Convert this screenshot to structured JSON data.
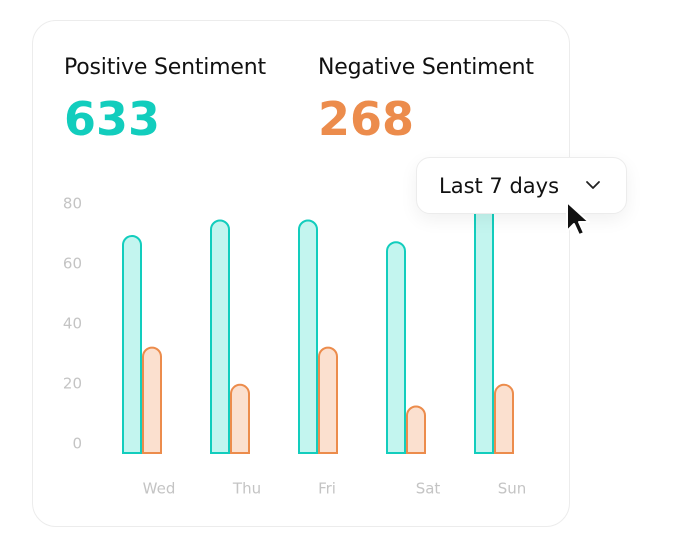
{
  "stats": {
    "positive": {
      "label": "Positive Sentiment",
      "value": "633",
      "color": "#12cdbd"
    },
    "negative": {
      "label": "Negative Sentiment",
      "value": "268",
      "color": "#ec8c4c"
    }
  },
  "dropdown": {
    "value": "Last 7 days",
    "icon": "chevron-down-icon"
  },
  "cursor": {
    "icon": "mouse-pointer-icon"
  },
  "chart_data": {
    "type": "bar",
    "categories": [
      "Wed",
      "Thu",
      "Fri",
      "Sat",
      "Sun"
    ],
    "series": [
      {
        "values": [
          70,
          75,
          75,
          68,
          80
        ],
        "fill": "#c3f5ef",
        "stroke": "#12cdbd"
      },
      {
        "values": [
          34,
          22,
          34,
          15,
          22
        ],
        "fill": "#fbe0cf",
        "stroke": "#ec8c4c"
      }
    ],
    "yticks": [
      0,
      20,
      40,
      60,
      80
    ],
    "ylim": [
      0,
      80
    ],
    "grid": false,
    "legend": "none"
  }
}
